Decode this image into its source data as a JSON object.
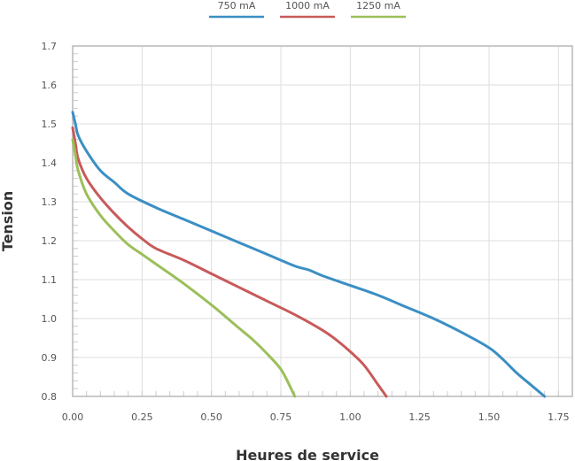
{
  "chart_data": {
    "type": "line",
    "title": "",
    "xlabel": "Heures de service",
    "ylabel": "Tension",
    "xlim": [
      0,
      1.8
    ],
    "ylim": [
      0.8,
      1.7
    ],
    "xticks": [
      "0.00",
      "0.25",
      "0.50",
      "0.75",
      "1.00",
      "1.25",
      "1.50",
      "1.75"
    ],
    "yticks": [
      "0.8",
      "0.9",
      "1.0",
      "1.1",
      "1.2",
      "1.3",
      "1.4",
      "1.5",
      "1.6",
      "1.7"
    ],
    "grid": true,
    "legend_position": "top",
    "series": [
      {
        "name": "750 mA",
        "color": "#3b8fc4",
        "points": [
          [
            0.0,
            1.53
          ],
          [
            0.01,
            1.5
          ],
          [
            0.02,
            1.47
          ],
          [
            0.05,
            1.43
          ],
          [
            0.1,
            1.38
          ],
          [
            0.15,
            1.35
          ],
          [
            0.2,
            1.32
          ],
          [
            0.3,
            1.285
          ],
          [
            0.4,
            1.255
          ],
          [
            0.5,
            1.225
          ],
          [
            0.6,
            1.195
          ],
          [
            0.7,
            1.165
          ],
          [
            0.8,
            1.135
          ],
          [
            0.85,
            1.125
          ],
          [
            0.9,
            1.11
          ],
          [
            1.0,
            1.085
          ],
          [
            1.1,
            1.06
          ],
          [
            1.2,
            1.03
          ],
          [
            1.3,
            1.0
          ],
          [
            1.4,
            0.965
          ],
          [
            1.5,
            0.925
          ],
          [
            1.55,
            0.895
          ],
          [
            1.6,
            0.86
          ],
          [
            1.65,
            0.83
          ],
          [
            1.7,
            0.8
          ]
        ]
      },
      {
        "name": "1000 mA",
        "color": "#c85a5a",
        "points": [
          [
            0.0,
            1.49
          ],
          [
            0.01,
            1.45
          ],
          [
            0.02,
            1.41
          ],
          [
            0.05,
            1.36
          ],
          [
            0.1,
            1.31
          ],
          [
            0.15,
            1.27
          ],
          [
            0.2,
            1.235
          ],
          [
            0.25,
            1.205
          ],
          [
            0.3,
            1.18
          ],
          [
            0.4,
            1.15
          ],
          [
            0.5,
            1.115
          ],
          [
            0.6,
            1.08
          ],
          [
            0.7,
            1.045
          ],
          [
            0.8,
            1.01
          ],
          [
            0.9,
            0.97
          ],
          [
            0.95,
            0.945
          ],
          [
            1.0,
            0.915
          ],
          [
            1.05,
            0.88
          ],
          [
            1.1,
            0.83
          ],
          [
            1.13,
            0.8
          ]
        ]
      },
      {
        "name": "1250 mA",
        "color": "#9cbf5a",
        "points": [
          [
            0.0,
            1.46
          ],
          [
            0.01,
            1.42
          ],
          [
            0.02,
            1.38
          ],
          [
            0.05,
            1.32
          ],
          [
            0.1,
            1.265
          ],
          [
            0.15,
            1.225
          ],
          [
            0.2,
            1.19
          ],
          [
            0.25,
            1.165
          ],
          [
            0.3,
            1.14
          ],
          [
            0.4,
            1.09
          ],
          [
            0.5,
            1.035
          ],
          [
            0.6,
            0.975
          ],
          [
            0.65,
            0.945
          ],
          [
            0.7,
            0.91
          ],
          [
            0.75,
            0.87
          ],
          [
            0.78,
            0.83
          ],
          [
            0.8,
            0.8
          ]
        ]
      }
    ]
  }
}
